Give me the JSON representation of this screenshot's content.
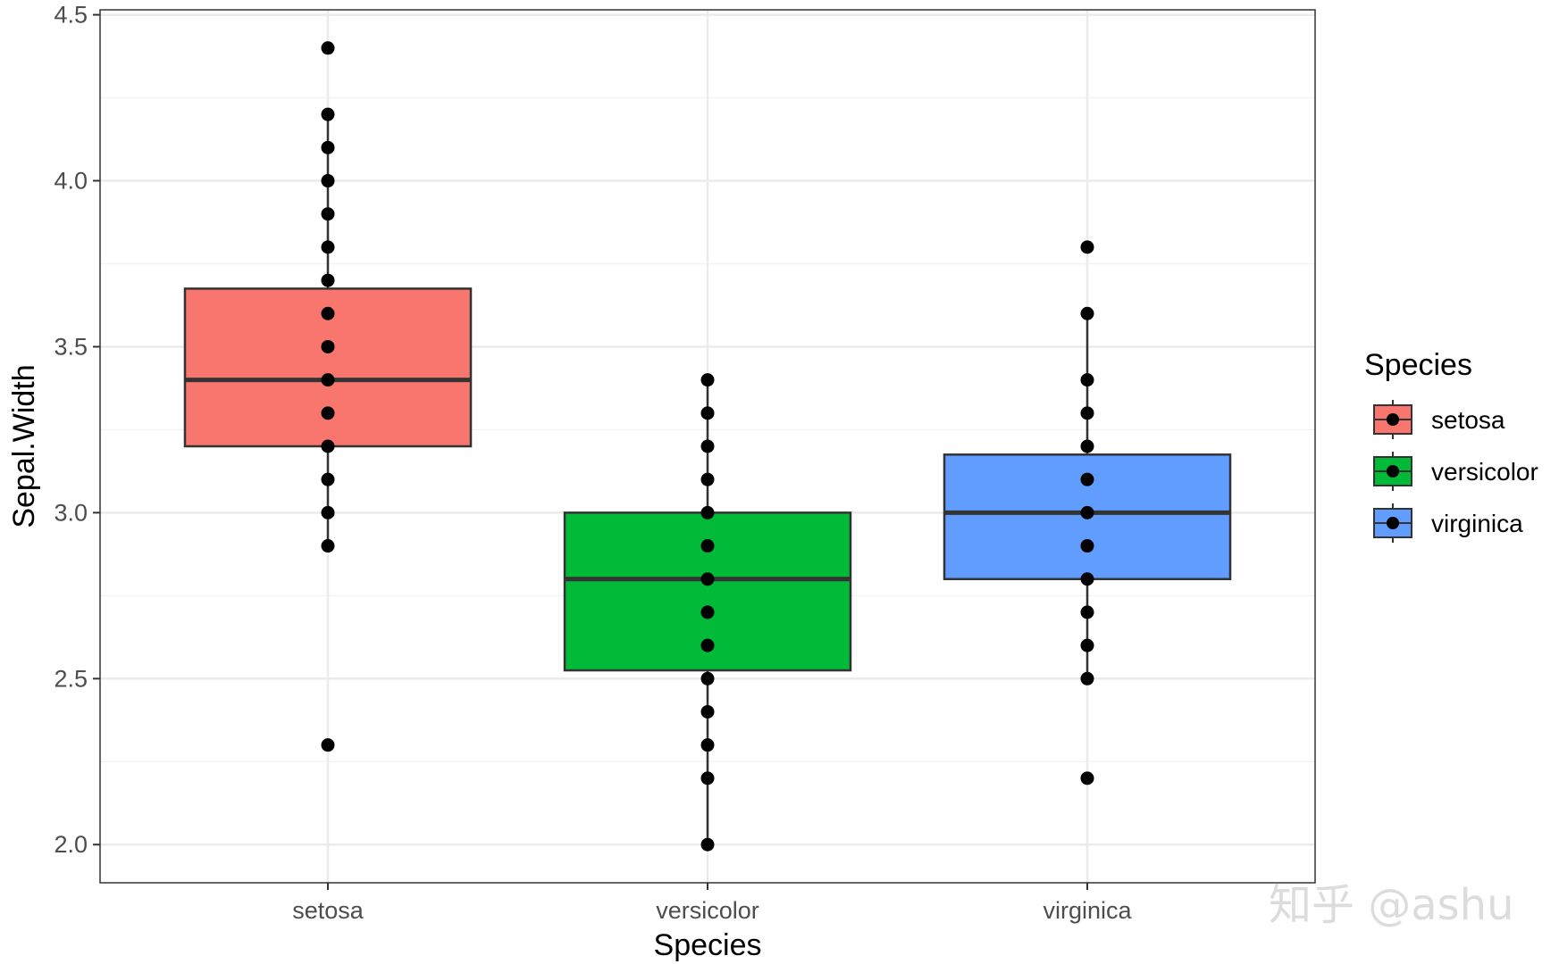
{
  "chart_data": {
    "type": "boxplot",
    "title": "",
    "xlabel": "Species",
    "ylabel": "Sepal.Width",
    "categories": [
      "setosa",
      "versicolor",
      "virginica"
    ],
    "ylim": [
      1.885,
      4.515
    ],
    "yticks": [
      2.0,
      2.5,
      3.0,
      3.5,
      4.0,
      4.5
    ],
    "ytick_labels": [
      "2.0",
      "2.5",
      "3.0",
      "3.5",
      "4.0",
      "4.5"
    ],
    "grid": true,
    "legend": {
      "title": "Species",
      "position": "right",
      "entries": [
        "setosa",
        "versicolor",
        "virginica"
      ]
    },
    "colors": {
      "setosa": "#F8766D",
      "versicolor": "#00BA38",
      "virginica": "#619CFF",
      "point": "#000000",
      "box_outline": "#333333",
      "panel_border": "#333333",
      "grid_major": "#ebebeb",
      "grid_minor": "#f4f4f4"
    },
    "boxes": [
      {
        "name": "setosa",
        "q1": 3.2,
        "median": 3.4,
        "q3": 3.675,
        "whisker_low": 2.9,
        "whisker_high": 4.2,
        "points": [
          4.4,
          4.2,
          4.1,
          4.0,
          3.9,
          3.8,
          3.7,
          3.6,
          3.5,
          3.4,
          3.3,
          3.2,
          3.1,
          3.0,
          2.9,
          2.3
        ]
      },
      {
        "name": "versicolor",
        "q1": 2.525,
        "median": 2.8,
        "q3": 3.0,
        "whisker_low": 2.0,
        "whisker_high": 3.4,
        "points": [
          3.4,
          3.3,
          3.2,
          3.1,
          3.0,
          2.9,
          2.8,
          2.7,
          2.6,
          2.5,
          2.4,
          2.3,
          2.2,
          2.0
        ]
      },
      {
        "name": "virginica",
        "q1": 2.8,
        "median": 3.0,
        "q3": 3.175,
        "whisker_low": 2.5,
        "whisker_high": 3.6,
        "points": [
          3.8,
          3.6,
          3.4,
          3.3,
          3.2,
          3.1,
          3.0,
          2.9,
          2.8,
          2.7,
          2.6,
          2.5,
          2.2
        ]
      }
    ]
  },
  "watermark": "知乎 @ashu"
}
